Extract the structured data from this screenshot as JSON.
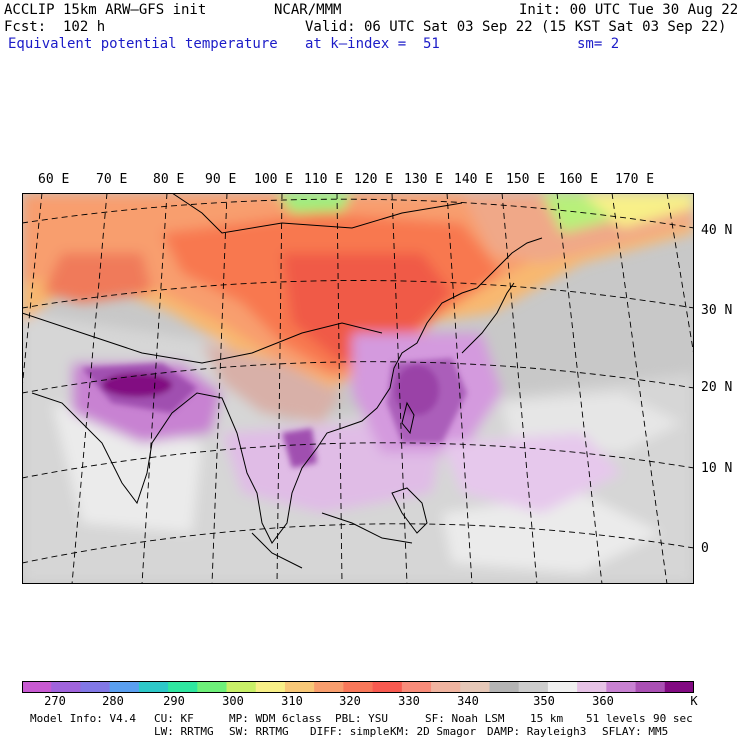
{
  "header": {
    "model_line": "ACCLIP 15km ARW–GFS init",
    "org": "NCAR/MMM",
    "init": "Init: 00 UTC Tue 30 Aug 22",
    "fcst": "Fcst:  102 h",
    "valid": "Valid: 06 UTC Sat 03 Sep 22 (15 KST Sat 03 Sep 22)",
    "field": "Equivalent potential temperature",
    "level": "at k–index =  51",
    "smoothing": "sm= 2"
  },
  "map": {
    "longitude_labels": [
      "60 E",
      "70 E",
      "80 E",
      "90 E",
      "100 E",
      "110 E",
      "120 E",
      "130 E",
      "140 E",
      "150 E",
      "160 E",
      "170 E"
    ],
    "latitude_labels": [
      "40 N",
      "30 N",
      "20 N",
      "10 N",
      "0"
    ]
  },
  "colorbar": {
    "unit": "K",
    "tick_labels": [
      "270",
      "280",
      "290",
      "300",
      "310",
      "320",
      "330",
      "340",
      "350",
      "360"
    ],
    "colors": [
      "#c85ad2",
      "#a064dc",
      "#8278e6",
      "#5a9ff0",
      "#2dc8c8",
      "#2fe6a0",
      "#6ef07a",
      "#c8f068",
      "#f8f088",
      "#f8c878",
      "#f89e6e",
      "#f8785a",
      "#f85a50",
      "#f88c7a",
      "#f0b4a0",
      "#e6c8b8",
      "#b4b4b4",
      "#cdcdcd",
      "#f0f0f0",
      "#e6c3e6",
      "#c882d2",
      "#aa50b4",
      "#820a82"
    ]
  },
  "footer": {
    "row1": [
      "Model Info: V4.4",
      "CU: KF",
      "MP: WDM 6class",
      "PBL: YSU",
      "SF: Noah LSM",
      "15 km",
      "51 levels",
      "90 sec"
    ],
    "row2": [
      "LW: RRTMG",
      "SW: RRTMG",
      "DIFF: simple",
      "KM: 2D Smagor",
      "DAMP: Rayleigh3",
      "SFLAY: MM5"
    ]
  }
}
